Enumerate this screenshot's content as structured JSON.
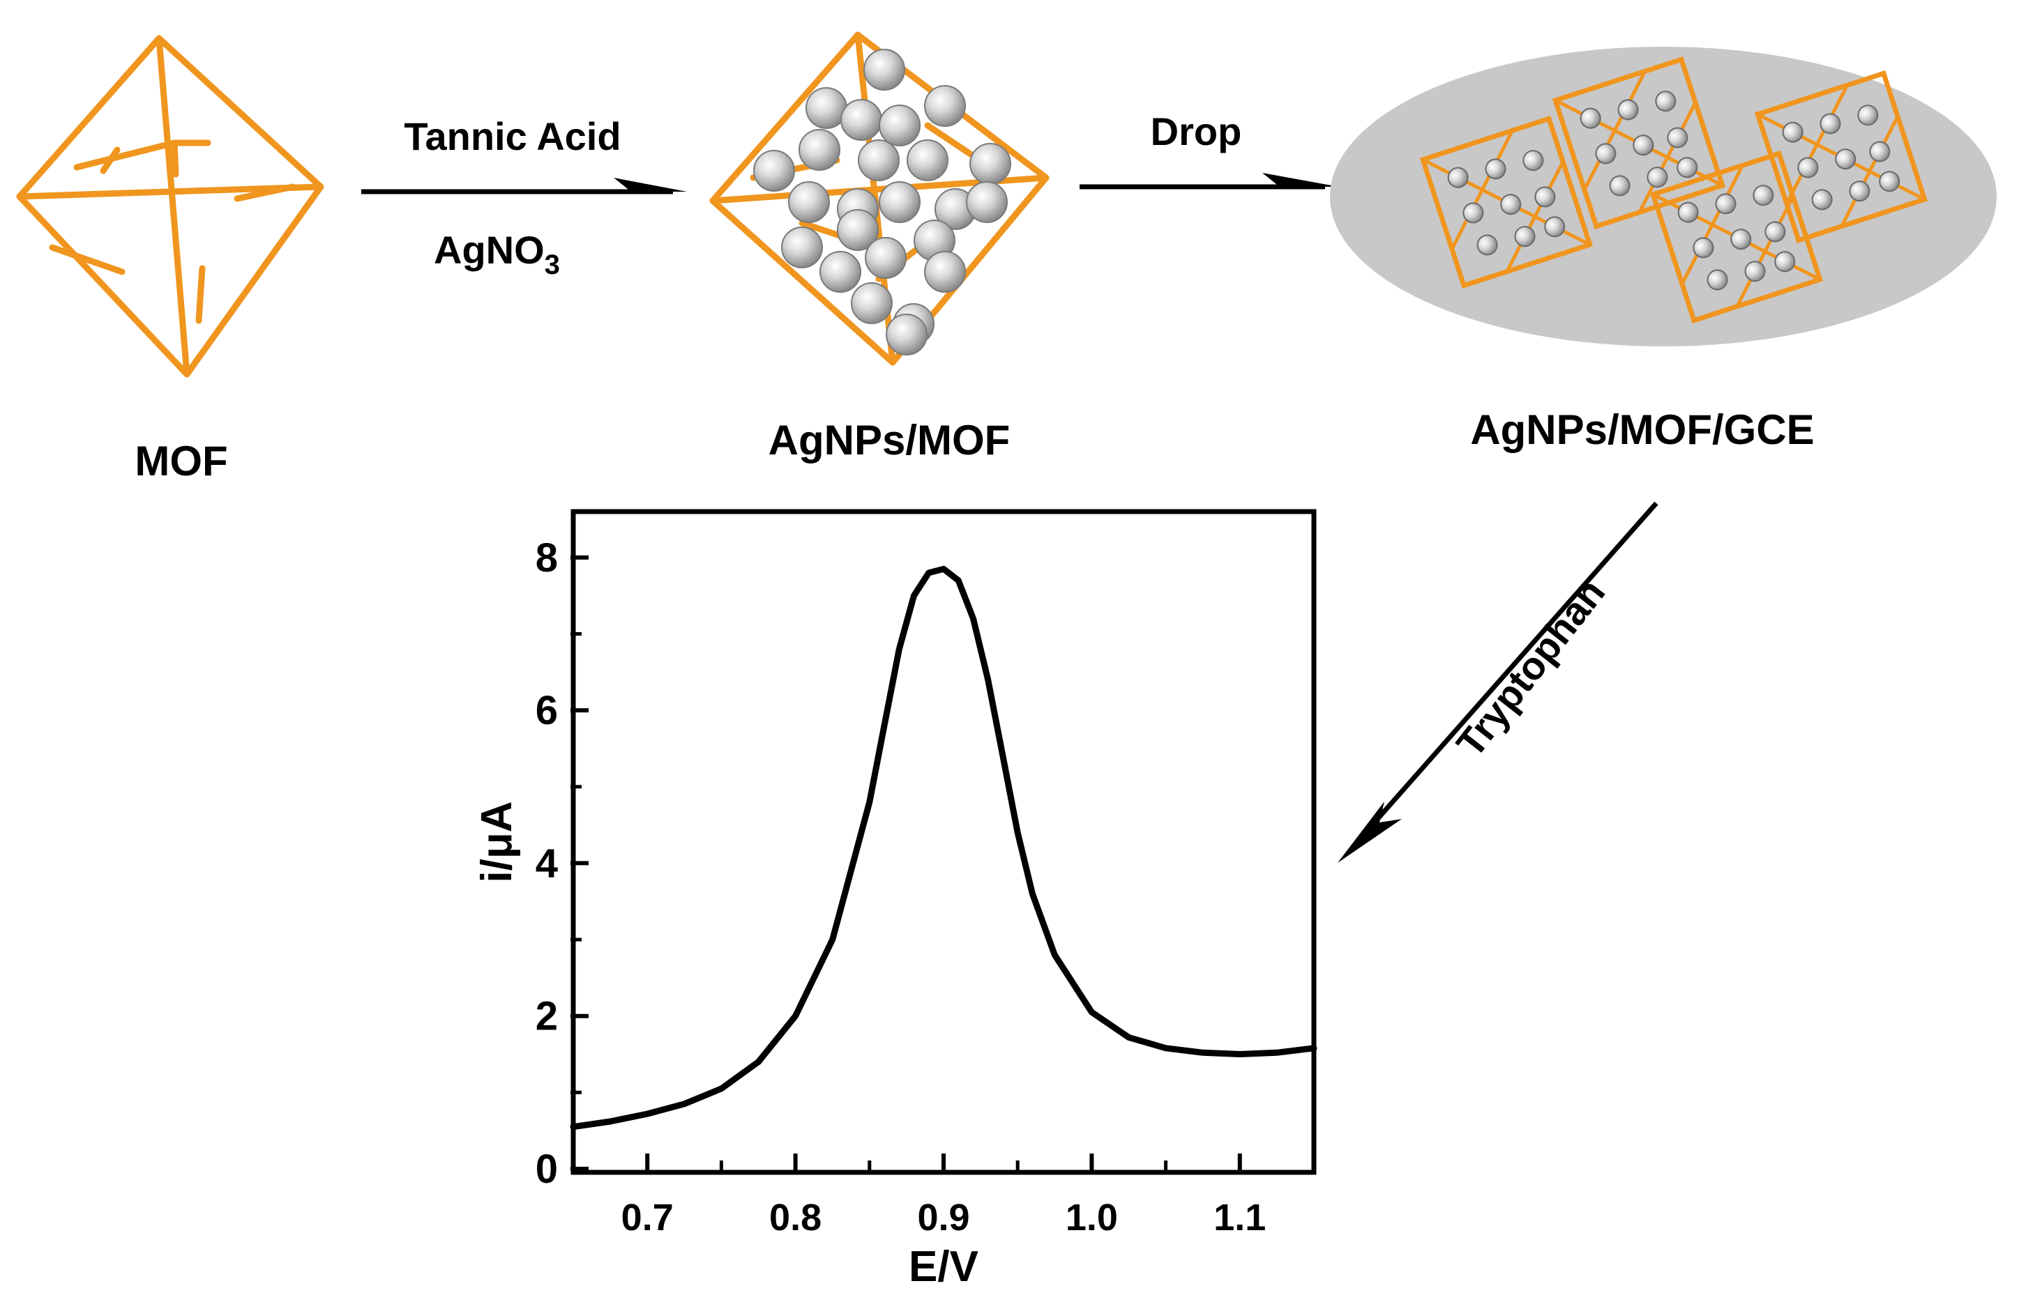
{
  "stages": [
    {
      "id": "mof",
      "label": "MOF"
    },
    {
      "id": "agnps_mof",
      "label": "AgNPs/MOF"
    },
    {
      "id": "agnps_mof_gce",
      "label": "AgNPs/MOF/GCE"
    }
  ],
  "arrows": [
    {
      "id": "arrow-1",
      "top_label": "Tannic Acid",
      "bottom_label_main": "AgNO",
      "bottom_label_sub": "3"
    },
    {
      "id": "arrow-2",
      "top_label": "Drop"
    },
    {
      "id": "arrow-3",
      "label": "Tryptophan"
    }
  ],
  "colors": {
    "mof_orange": "#F0951E",
    "electrode_gray": "#C8C8C8",
    "particle_gray": "#B9B9B9",
    "line": "#000000"
  },
  "chart_data": {
    "type": "line",
    "xlabel": "E/V",
    "ylabel": "i/μA",
    "xlim": [
      0.65,
      1.15
    ],
    "ylim": [
      0,
      8.5
    ],
    "xticks": [
      0.7,
      0.8,
      0.9,
      1.0,
      1.1
    ],
    "xtick_labels": [
      "0.7",
      "0.8",
      "0.9",
      "1.0",
      "1.1"
    ],
    "yticks": [
      0,
      2,
      4,
      6,
      8
    ],
    "ytick_labels": [
      "0",
      "2",
      "4",
      "6",
      "8"
    ],
    "grid": false,
    "series": [
      {
        "x": [
          0.65,
          0.675,
          0.7,
          0.725,
          0.75,
          0.775,
          0.8,
          0.825,
          0.85,
          0.86,
          0.87,
          0.88,
          0.89,
          0.9,
          0.91,
          0.92,
          0.93,
          0.94,
          0.95,
          0.96,
          0.975,
          1.0,
          1.025,
          1.05,
          1.075,
          1.1,
          1.125,
          1.15
        ],
        "y": [
          0.55,
          0.62,
          0.72,
          0.85,
          1.05,
          1.4,
          2.0,
          3.0,
          4.8,
          5.8,
          6.8,
          7.5,
          7.8,
          7.85,
          7.7,
          7.2,
          6.4,
          5.4,
          4.4,
          3.6,
          2.8,
          2.05,
          1.72,
          1.58,
          1.52,
          1.5,
          1.52,
          1.58
        ]
      }
    ]
  }
}
